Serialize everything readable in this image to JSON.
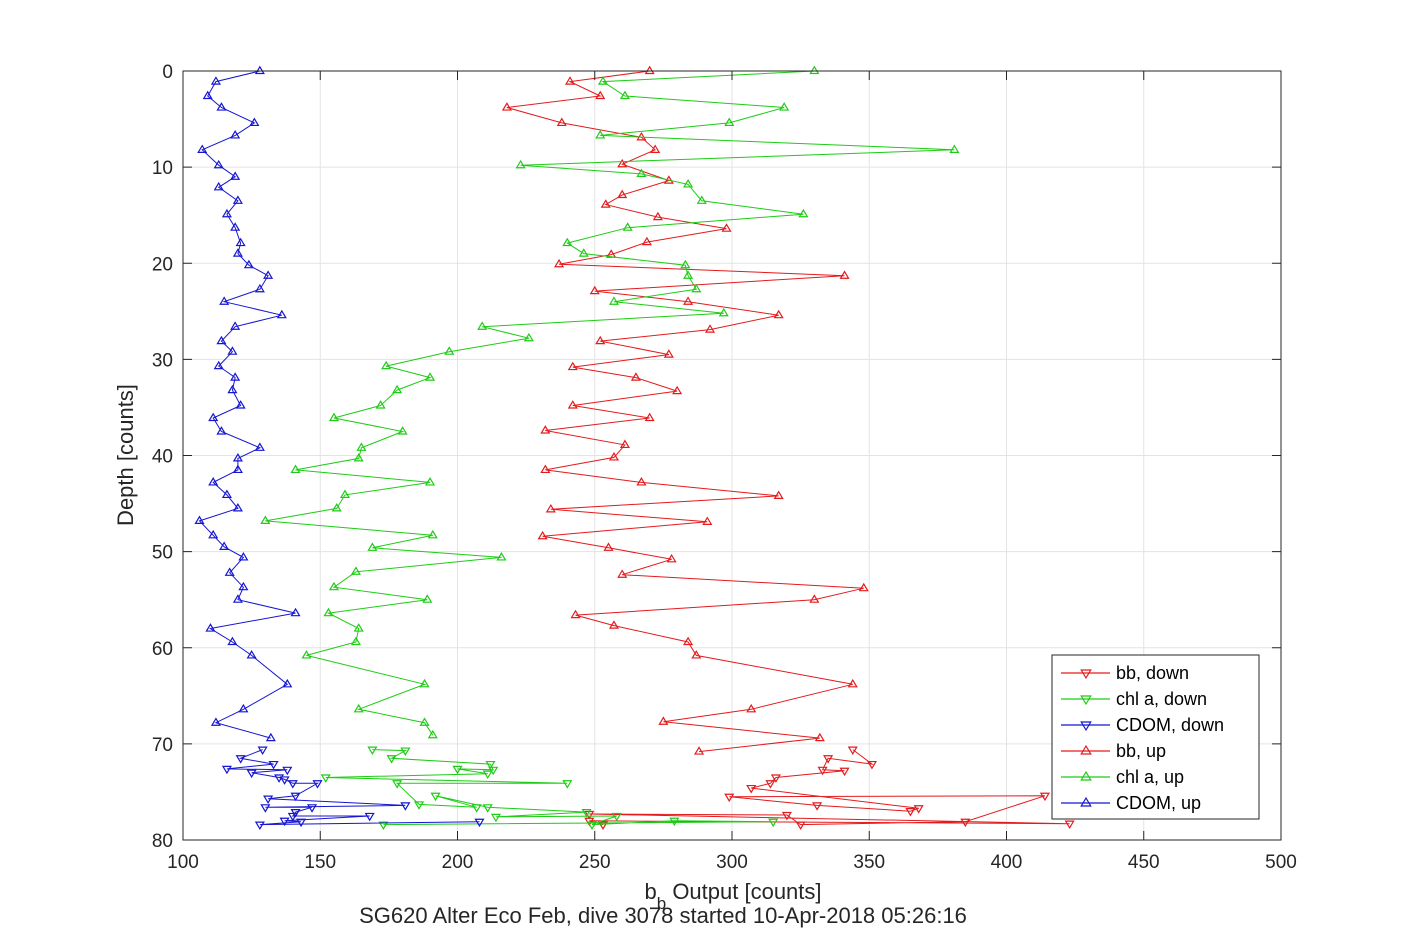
{
  "chart_data": {
    "type": "line",
    "title": "",
    "xlabel": {
      "main": "b",
      "sub": "b",
      "rest": " Output [counts]"
    },
    "ylabel": "Depth [counts]",
    "caption": "SG620 Alter Eco Feb, dive 3078 started 10-Apr-2018 05:26:16",
    "xlim": [
      100,
      500
    ],
    "ylim": [
      0,
      80
    ],
    "y_reversed": true,
    "grid": true,
    "legend_position": "bottom-right",
    "xticks": [
      100,
      150,
      200,
      250,
      300,
      350,
      400,
      450,
      500
    ],
    "yticks": [
      0,
      10,
      20,
      30,
      40,
      50,
      60,
      70,
      80
    ],
    "series": [
      {
        "name": "bb, down",
        "color": "#e41a1c",
        "marker": "down",
        "x": [
          344,
          351,
          335,
          333,
          341,
          316,
          314,
          307,
          368,
          365,
          331,
          299,
          414,
          385,
          325,
          320,
          248,
          423,
          248,
          253
        ],
        "y": [
          70.6,
          72.1,
          71.5,
          72.7,
          72.8,
          73.5,
          74.1,
          74.6,
          76.7,
          77,
          76.4,
          75.5,
          75.4,
          78.1,
          78.4,
          77.4,
          77.3,
          78.3,
          78,
          78.4
        ]
      },
      {
        "name": "chl a, down",
        "color": "#1dcc14",
        "marker": "down",
        "x": [
          169,
          181,
          176,
          212,
          213,
          200,
          211,
          152,
          240,
          178,
          186,
          207,
          192,
          211,
          247,
          214,
          258,
          249,
          279,
          315,
          173
        ],
        "y": [
          70.6,
          70.7,
          71.5,
          72.1,
          72.7,
          72.6,
          73.1,
          73.5,
          74.1,
          74.1,
          76.3,
          76.6,
          75.4,
          76.6,
          77.1,
          77.6,
          77.5,
          78.4,
          78,
          78.1,
          78.4
        ]
      },
      {
        "name": "CDOM, down",
        "color": "#1515d2",
        "marker": "down",
        "x": [
          129,
          121,
          133,
          116,
          138,
          125,
          135,
          137,
          140,
          149,
          141,
          131,
          181,
          130,
          147,
          141,
          140,
          168,
          137,
          143,
          128,
          208
        ],
        "y": [
          70.6,
          71.5,
          72.1,
          72.6,
          72.7,
          73,
          73.5,
          73.7,
          74.1,
          74.1,
          75.4,
          75.7,
          76.4,
          76.6,
          76.6,
          77.1,
          77.5,
          77.5,
          78,
          78.1,
          78.4,
          78.1
        ]
      },
      {
        "name": "bb, up",
        "color": "#e41a1c",
        "marker": "up",
        "x": [
          270,
          241,
          252,
          218,
          238,
          267,
          272,
          260,
          277,
          260,
          254,
          273,
          298,
          269,
          256,
          237,
          341,
          250,
          284,
          317,
          292,
          252,
          277,
          242,
          265,
          280,
          242,
          270,
          232,
          261,
          257,
          232,
          267,
          317,
          234,
          291,
          231,
          255,
          278,
          260,
          348,
          330,
          243,
          257,
          284,
          287,
          344,
          307,
          275,
          332,
          288
        ],
        "y": [
          0,
          1.1,
          2.6,
          3.8,
          5.4,
          6.9,
          8.2,
          9.7,
          11.4,
          12.9,
          13.9,
          15.2,
          16.4,
          17.8,
          19.1,
          20.1,
          21.3,
          22.9,
          24,
          25.4,
          26.9,
          28.1,
          29.5,
          30.8,
          31.9,
          33.3,
          34.8,
          36.1,
          37.4,
          38.9,
          40.2,
          41.5,
          42.8,
          44.2,
          45.6,
          46.9,
          48.4,
          49.6,
          50.8,
          52.4,
          53.8,
          55,
          56.6,
          57.7,
          59.4,
          60.8,
          63.8,
          66.4,
          67.7,
          69.4,
          70.8
        ]
      },
      {
        "name": "chl a, up",
        "color": "#1dcc14",
        "marker": "up",
        "x": [
          330,
          253,
          261,
          319,
          299,
          252,
          381,
          223,
          267,
          284,
          289,
          326,
          262,
          240,
          246,
          283,
          284,
          287,
          257,
          297,
          209,
          226,
          197,
          174,
          190,
          178,
          172,
          155,
          180,
          165,
          164,
          141,
          190,
          159,
          156,
          130,
          191,
          169,
          216,
          163,
          155,
          189,
          153,
          164,
          163,
          145,
          188,
          164,
          188,
          191
        ],
        "y": [
          0,
          1.1,
          2.6,
          3.8,
          5.4,
          6.7,
          8.2,
          9.8,
          10.7,
          11.8,
          13.5,
          14.9,
          16.3,
          17.9,
          19,
          20.2,
          21.3,
          22.7,
          24,
          25.2,
          26.6,
          27.8,
          29.2,
          30.7,
          31.9,
          33.2,
          34.8,
          36.1,
          37.5,
          39.2,
          40.3,
          41.5,
          42.8,
          44.1,
          45.5,
          46.8,
          48.3,
          49.6,
          50.6,
          52.1,
          53.7,
          55,
          56.4,
          58,
          59.4,
          60.8,
          63.8,
          66.4,
          67.8,
          69.1
        ]
      },
      {
        "name": "CDOM, up",
        "color": "#1515d2",
        "marker": "up",
        "x": [
          128,
          112,
          109,
          114,
          126,
          119,
          107,
          113,
          119,
          113,
          120,
          116,
          119,
          121,
          120,
          124,
          131,
          128,
          115,
          136,
          119,
          114,
          118,
          113,
          119,
          118,
          121,
          111,
          114,
          128,
          120,
          120,
          111,
          116,
          120,
          106,
          111,
          115,
          122,
          117,
          122,
          120,
          141,
          110,
          118,
          125,
          138,
          122,
          112,
          132
        ],
        "y": [
          0,
          1.1,
          2.6,
          3.8,
          5.4,
          6.7,
          8.2,
          9.8,
          11,
          12.1,
          13.5,
          14.9,
          16.3,
          17.9,
          19,
          20.2,
          21.3,
          22.7,
          24,
          25.4,
          26.6,
          28.1,
          29.2,
          30.7,
          31.9,
          33.2,
          34.8,
          36.1,
          37.5,
          39.2,
          40.3,
          41.5,
          42.8,
          44.1,
          45.5,
          46.8,
          48.3,
          49.5,
          50.6,
          52.2,
          53.7,
          55,
          56.4,
          58,
          59.4,
          60.8,
          63.8,
          66.4,
          67.8,
          69.4
        ]
      }
    ]
  }
}
